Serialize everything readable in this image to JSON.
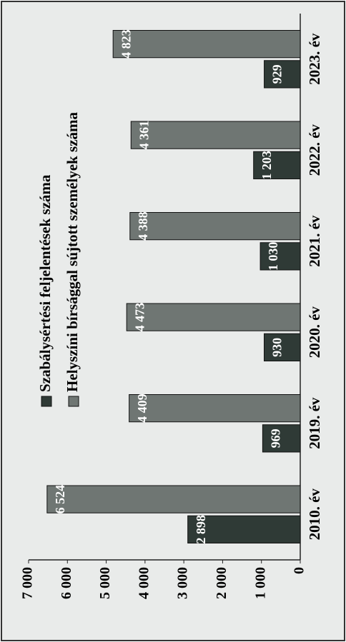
{
  "chart_data": {
    "type": "bar",
    "categories": [
      "2010. év",
      "2019. év",
      "2020. év",
      "2021. év",
      "2022. év",
      "2023. év"
    ],
    "series": [
      {
        "name": "Szabálysértési feljelentések száma",
        "color": "#2f3a36",
        "values": [
          2898,
          969,
          930,
          1030,
          1203,
          929
        ],
        "value_labels": [
          "2 898",
          "969",
          "930",
          "1 030",
          "1 203",
          "929"
        ]
      },
      {
        "name": "Helyszíni bírsággal sújtott személyek száma",
        "color": "#6f7673",
        "values": [
          6524,
          4409,
          4473,
          4388,
          4361,
          4823
        ],
        "value_labels": [
          "6 524",
          "4 409",
          "4 473",
          "4 388",
          "4 361",
          "4 823"
        ]
      }
    ],
    "ylim": [
      0,
      7000
    ],
    "yticks": [
      0,
      {
        "value": 1000,
        "label": "1 000"
      },
      {
        "value": 2000,
        "label": "2 000"
      },
      {
        "value": 3000,
        "label": "3 000"
      },
      {
        "value": 4000,
        "label": "4 000"
      },
      {
        "value": 5000,
        "label": "5 000"
      },
      {
        "value": 6000,
        "label": "6 000"
      },
      {
        "value": 7000,
        "label": "7 000"
      }
    ],
    "legend": "top"
  }
}
